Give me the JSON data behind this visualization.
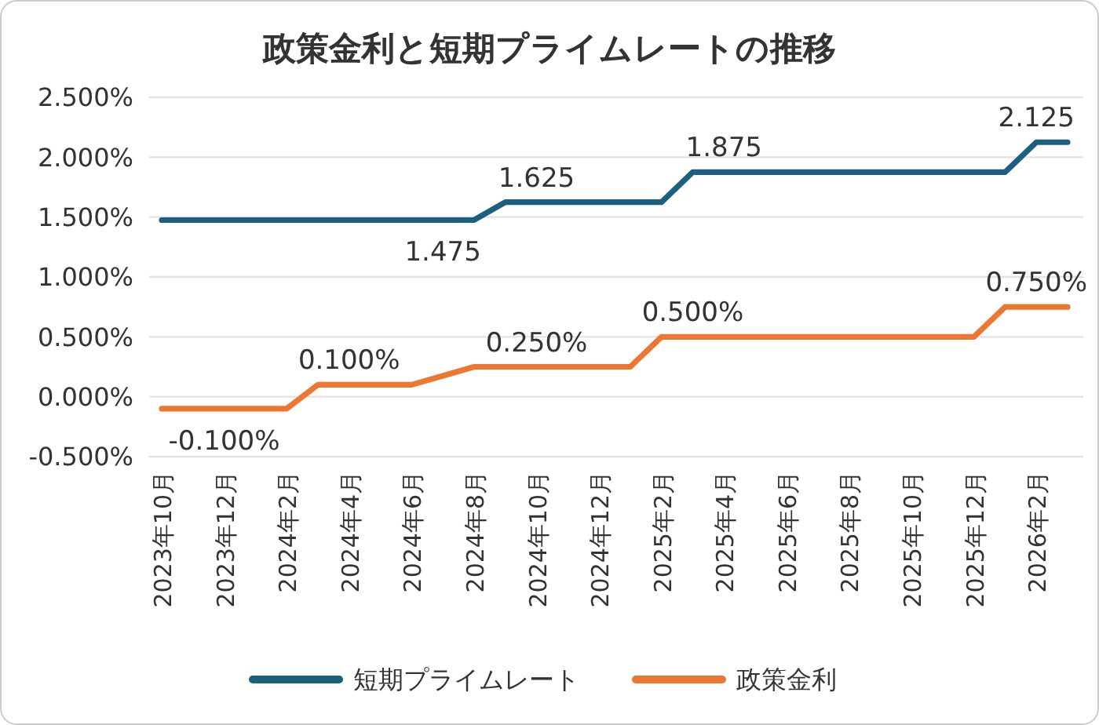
{
  "chart_data": {
    "type": "line",
    "title": "政策金利と短期プライムレートの推移",
    "categories": [
      "2023年10月",
      null,
      "2023年12月",
      null,
      "2024年2月",
      null,
      "2024年4月",
      null,
      "2024年6月",
      null,
      "2024年8月",
      null,
      "2024年10月",
      null,
      "2024年12月",
      null,
      "2025年2月",
      null,
      "2025年4月",
      null,
      "2025年6月",
      null,
      "2025年8月",
      null,
      "2025年10月",
      null,
      "2025年12月",
      null,
      "2026年2月",
      null
    ],
    "series": [
      {
        "name": "短期プライムレート",
        "color": "#1d5f80",
        "values": [
          1.475,
          1.475,
          1.475,
          1.475,
          1.475,
          1.475,
          1.475,
          1.475,
          1.475,
          1.475,
          1.475,
          1.625,
          1.625,
          1.625,
          1.625,
          1.625,
          1.625,
          1.875,
          1.875,
          1.875,
          1.875,
          1.875,
          1.875,
          1.875,
          1.875,
          1.875,
          1.875,
          1.875,
          2.125,
          2.125
        ],
        "value_labels": [
          null,
          null,
          null,
          null,
          null,
          null,
          null,
          null,
          null,
          "1.475",
          null,
          null,
          "1.625",
          null,
          null,
          null,
          null,
          null,
          "1.875",
          null,
          null,
          null,
          null,
          null,
          null,
          null,
          null,
          null,
          "2.125",
          null
        ]
      },
      {
        "name": "政策金利",
        "color": "#ec7632",
        "values": [
          -0.1,
          -0.1,
          -0.1,
          -0.1,
          -0.1,
          0.1,
          0.1,
          0.1,
          0.1,
          0.175,
          0.25,
          0.25,
          0.25,
          0.25,
          0.25,
          0.25,
          0.5,
          0.5,
          0.5,
          0.5,
          0.5,
          0.5,
          0.5,
          0.5,
          0.5,
          0.5,
          0.5,
          0.75,
          0.75,
          0.75
        ],
        "value_labels": [
          null,
          null,
          "-0.100%",
          null,
          null,
          null,
          "0.100%",
          null,
          null,
          null,
          null,
          null,
          "0.250%",
          null,
          null,
          null,
          null,
          "0.500%",
          null,
          null,
          null,
          null,
          null,
          null,
          null,
          null,
          null,
          null,
          "0.750%",
          null
        ]
      }
    ],
    "ylim": [
      -0.5,
      2.5
    ],
    "yticks": [
      {
        "value": -0.5,
        "label": "-0.500%"
      },
      {
        "value": 0,
        "label": "0.000%"
      },
      {
        "value": 0.5,
        "label": "0.500%"
      },
      {
        "value": 1,
        "label": "1.000%"
      },
      {
        "value": 1.5,
        "label": "1.500%"
      },
      {
        "value": 2,
        "label": "2.000%"
      },
      {
        "value": 2.5,
        "label": "2.500%"
      }
    ],
    "grid": "y",
    "legend": "bottom",
    "marker": "none",
    "line_style": "solid"
  }
}
